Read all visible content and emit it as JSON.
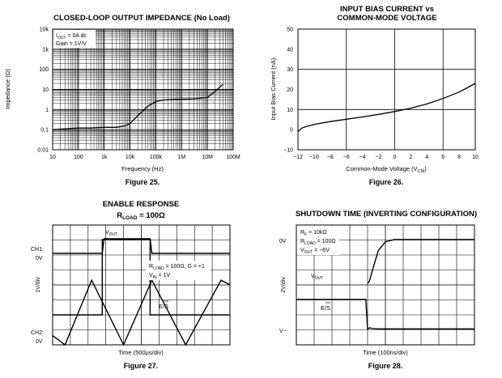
{
  "chart_data": [
    {
      "figure": "Figure 25.",
      "title": "CLOSED-LOOP OUTPUT IMPEDANCE (No Load)",
      "type": "line",
      "xlabel": "Frequency (Hz)",
      "ylabel": "Impedance (Ω)",
      "x_scale": "log",
      "y_scale": "log",
      "xlim": [
        10,
        100000000
      ],
      "ylim": [
        0.01,
        10000
      ],
      "x_ticks": [
        "10",
        "100",
        "1k",
        "10k",
        "100k",
        "1M",
        "10M",
        "100M"
      ],
      "y_ticks": [
        "10k",
        "1k",
        "100",
        "10",
        "1",
        "0.1",
        "0.01"
      ],
      "annotation": [
        "I_OUT = 0A dc",
        "Gain = 1V/V"
      ],
      "grid": true,
      "series": [
        {
          "x": [
            10,
            30,
            100,
            300,
            1000,
            3000,
            6000,
            10000,
            20000,
            50000,
            100000,
            200000,
            500000,
            1000000,
            3000000,
            10000000,
            20000000,
            40000000
          ],
          "y": [
            0.1,
            0.11,
            0.12,
            0.12,
            0.13,
            0.13,
            0.15,
            0.2,
            0.5,
            1.5,
            2.5,
            3,
            3.2,
            3.3,
            3.4,
            4,
            8,
            18
          ]
        }
      ]
    },
    {
      "figure": "Figure 26.",
      "title": [
        "INPUT BIAS CURRENT vs",
        "COMMON-MODE VOLTAGE"
      ],
      "type": "line",
      "xlabel": "Common-Mode Voltage (V",
      "xlabel_sub": "CM",
      "ylabel": "Input Bias Current (nA)",
      "xlim": [
        -12,
        10
      ],
      "ylim": [
        -10,
        50
      ],
      "x_ticks": [
        "−12",
        "−10",
        "−8",
        "−6",
        "−4",
        "−2",
        "0",
        "2",
        "4",
        "6",
        "8",
        "10"
      ],
      "y_ticks": [
        "50",
        "40",
        "30",
        "20",
        "10",
        "0",
        "−10"
      ],
      "grid": true,
      "series": [
        {
          "x": [
            -12,
            -11.5,
            -11,
            -10,
            -8,
            -6,
            -4,
            -2,
            0,
            2,
            4,
            6,
            8,
            9,
            10
          ],
          "y": [
            -1,
            0.8,
            1.5,
            2.6,
            4,
            5.2,
            6.3,
            7.6,
            9,
            10.7,
            12.8,
            15.5,
            18.7,
            20.8,
            23
          ]
        }
      ]
    },
    {
      "figure": "Figure 27.",
      "title": [
        "ENABLE RESPONSE",
        "R",
        "LOAD",
        " = 100Ω"
      ],
      "type": "line",
      "xlabel": "Time (500μs/div)",
      "ylabel": "1V/div",
      "labels": {
        "ch1": "CH1:",
        "ch1_level": "0V",
        "ch2": "CH2:",
        "ch2_level": "0V",
        "vout": "V",
        "vout_sub": "OUT",
        "cond1": "R",
        "cond1_sub": "LOAD",
        "cond1_rest": " = 100Ω, G = +1",
        "cond2": "V",
        "cond2_sub": "IN",
        "cond2_rest": " = 1V",
        "enable": "E/S"
      },
      "grid": true,
      "series": [
        {
          "name": "V_OUT",
          "x": [
            0,
            2.8,
            2.9,
            5.5,
            5.6,
            10
          ],
          "y": [
            0,
            0,
            1,
            1,
            0,
            0
          ]
        },
        {
          "name": "E/S",
          "x": [
            0,
            2.8,
            2.8,
            5.5,
            5.5,
            10
          ],
          "y": [
            0,
            0,
            1,
            1,
            0,
            0
          ]
        },
        {
          "name": "triangle",
          "x": [
            0,
            0.7,
            2.2,
            4.0,
            5.6,
            7.5,
            9.5,
            10
          ],
          "y": [
            0.4,
            0,
            2.8,
            0,
            2.8,
            0,
            2.8,
            2.6
          ]
        }
      ]
    },
    {
      "figure": "Figure 28.",
      "title": "SHUTDOWN TIME (INVERTING CONFIGURATION)",
      "type": "line",
      "xlabel": "Time (100ns/div)",
      "ylabel": "2V/div",
      "labels": {
        "top": "0V",
        "bottom": "V−",
        "cond1": "R",
        "cond1_sub": "F",
        "cond1_rest": " = 10kΩ",
        "cond2": "R",
        "cond2_sub": "LOAD",
        "cond2_rest": " = 100Ω",
        "cond3": "V",
        "cond3_sub": "OUT",
        "cond3_rest": " = −6V",
        "vout": "V",
        "vout_sub": "OUT",
        "shutdown": "E/S"
      },
      "grid": true,
      "series": [
        {
          "name": "V_OUT",
          "x": [
            4.0,
            4.1,
            4.3,
            4.6,
            5.0,
            5.5,
            10
          ],
          "y": [
            -6,
            -5.7,
            -4,
            -1.5,
            -0.3,
            0,
            0
          ]
        },
        {
          "name": "E/S",
          "x": [
            0,
            3.9,
            4.0,
            4.1,
            4.3,
            4.6,
            10
          ],
          "y": [
            0,
            0,
            -8,
            -7.6,
            -7.8,
            -7.9,
            -7.9
          ]
        }
      ]
    }
  ]
}
